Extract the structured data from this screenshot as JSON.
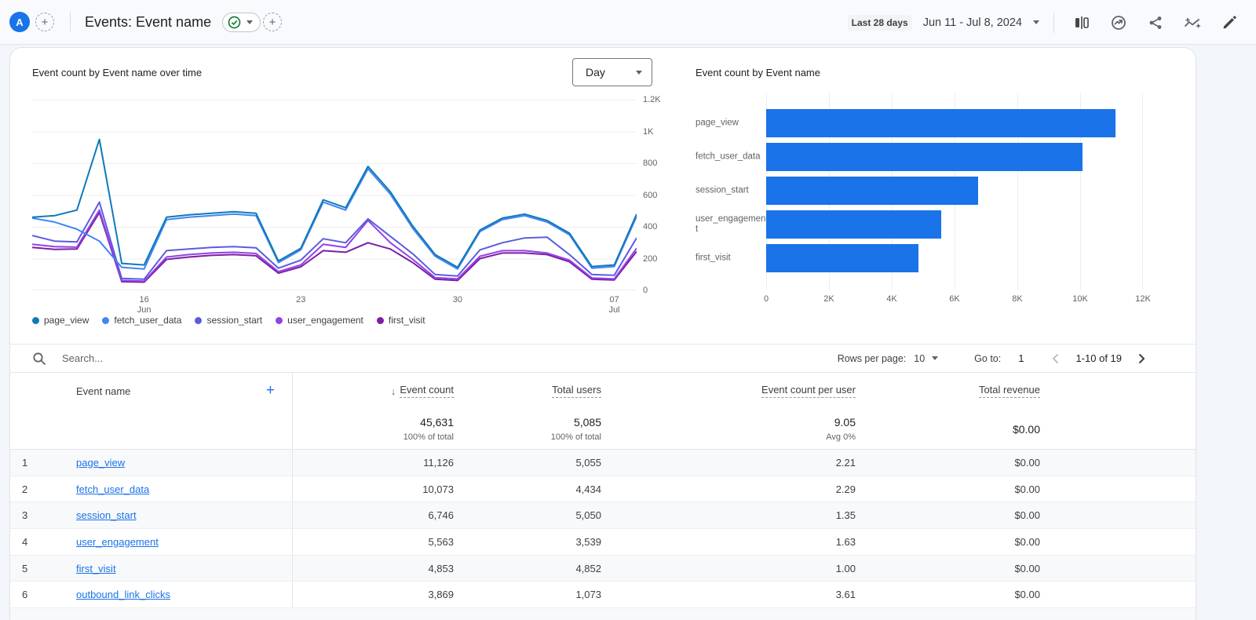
{
  "topbar": {
    "avatar_letter": "A",
    "title": "Events: Event name",
    "date_range_label": "Last 28 days",
    "date_range": "Jun 11 - Jul 8, 2024"
  },
  "colors": {
    "accent_blue": "#1a73e8",
    "link_color": "#1a73e8",
    "check_green": "#188038",
    "gridline": "#eceef1"
  },
  "chart_data": [
    {
      "type": "line",
      "title": "Event count by Event name over time",
      "interval_selector": "Day",
      "ylim": [
        0,
        1200
      ],
      "y_ticks": [
        "1.2K",
        "1K",
        "800",
        "600",
        "400",
        "200",
        "0"
      ],
      "x_ticks": [
        {
          "label": "16",
          "sub": "Jun",
          "index": 5
        },
        {
          "label": "23",
          "sub": "",
          "index": 12
        },
        {
          "label": "30",
          "sub": "",
          "index": 19
        },
        {
          "label": "07",
          "sub": "Jul",
          "index": 26
        }
      ],
      "x": [
        "Jun 11",
        "Jun 12",
        "Jun 13",
        "Jun 14",
        "Jun 15",
        "Jun 16",
        "Jun 17",
        "Jun 18",
        "Jun 19",
        "Jun 20",
        "Jun 21",
        "Jun 22",
        "Jun 23",
        "Jun 24",
        "Jun 25",
        "Jun 26",
        "Jun 27",
        "Jun 28",
        "Jun 29",
        "Jun 30",
        "Jul 1",
        "Jul 2",
        "Jul 3",
        "Jul 4",
        "Jul 5",
        "Jul 6",
        "Jul 7",
        "Jul 8"
      ],
      "series": [
        {
          "name": "page_view",
          "color": "#0f7ab8",
          "values": [
            460,
            470,
            505,
            950,
            170,
            160,
            460,
            475,
            485,
            495,
            485,
            185,
            265,
            570,
            520,
            780,
            620,
            405,
            225,
            145,
            380,
            455,
            480,
            440,
            360,
            150,
            160,
            480
          ]
        },
        {
          "name": "fetch_user_data",
          "color": "#4285f4",
          "values": [
            455,
            430,
            385,
            310,
            145,
            135,
            445,
            460,
            470,
            480,
            470,
            175,
            255,
            555,
            505,
            765,
            605,
            390,
            215,
            135,
            370,
            445,
            470,
            430,
            350,
            140,
            150,
            465
          ]
        },
        {
          "name": "session_start",
          "color": "#5c5ce0",
          "values": [
            345,
            310,
            305,
            555,
            75,
            70,
            250,
            260,
            270,
            275,
            268,
            140,
            190,
            325,
            300,
            450,
            340,
            230,
            100,
            90,
            255,
            300,
            330,
            335,
            225,
            100,
            95,
            330
          ]
        },
        {
          "name": "user_engagement",
          "color": "#9341e8",
          "values": [
            290,
            275,
            272,
            505,
            62,
            58,
            210,
            225,
            235,
            240,
            232,
            118,
            160,
            290,
            270,
            440,
            300,
            195,
            80,
            72,
            215,
            250,
            250,
            235,
            190,
            78,
            72,
            265
          ]
        },
        {
          "name": "first_visit",
          "color": "#7b1fa2",
          "values": [
            270,
            258,
            260,
            490,
            55,
            52,
            195,
            210,
            220,
            225,
            218,
            108,
            148,
            250,
            240,
            300,
            260,
            175,
            70,
            62,
            200,
            235,
            235,
            225,
            180,
            70,
            65,
            245
          ]
        }
      ]
    },
    {
      "type": "bar",
      "title": "Event count by Event name",
      "orientation": "horizontal",
      "categories": [
        "page_view",
        "fetch_user_data",
        "session_start",
        "user_engagement",
        "first_visit"
      ],
      "values": [
        11126,
        10073,
        6746,
        5563,
        4853
      ],
      "xlim": [
        0,
        12000
      ],
      "x_ticks": [
        "0",
        "2K",
        "4K",
        "6K",
        "8K",
        "10K",
        "12K"
      ],
      "bar_color": "#1a73e8"
    }
  ],
  "table": {
    "search_placeholder": "Search...",
    "rows_per_page_label": "Rows per page:",
    "rows_per_page_value": "10",
    "goto_label": "Go to:",
    "goto_value": "1",
    "range_text": "1-10 of 19",
    "sort_icon": "↓",
    "columns": {
      "dimension": "Event name",
      "add_column": "+",
      "metrics": [
        "Event count",
        "Total users",
        "Event count per user",
        "Total revenue"
      ]
    },
    "totals": {
      "event_count": "45,631",
      "event_count_sub": "100% of total",
      "total_users": "5,085",
      "total_users_sub": "100% of total",
      "per_user": "9.05",
      "per_user_sub": "Avg 0%",
      "revenue": "$0.00"
    },
    "rows": [
      {
        "num": "1",
        "name": "page_view",
        "event_count": "11,126",
        "total_users": "5,055",
        "per_user": "2.21",
        "revenue": "$0.00"
      },
      {
        "num": "2",
        "name": "fetch_user_data",
        "event_count": "10,073",
        "total_users": "4,434",
        "per_user": "2.29",
        "revenue": "$0.00"
      },
      {
        "num": "3",
        "name": "session_start",
        "event_count": "6,746",
        "total_users": "5,050",
        "per_user": "1.35",
        "revenue": "$0.00"
      },
      {
        "num": "4",
        "name": "user_engagement",
        "event_count": "5,563",
        "total_users": "3,539",
        "per_user": "1.63",
        "revenue": "$0.00"
      },
      {
        "num": "5",
        "name": "first_visit",
        "event_count": "4,853",
        "total_users": "4,852",
        "per_user": "1.00",
        "revenue": "$0.00"
      },
      {
        "num": "6",
        "name": "outbound_link_clicks",
        "event_count": "3,869",
        "total_users": "1,073",
        "per_user": "3.61",
        "revenue": "$0.00"
      }
    ]
  }
}
